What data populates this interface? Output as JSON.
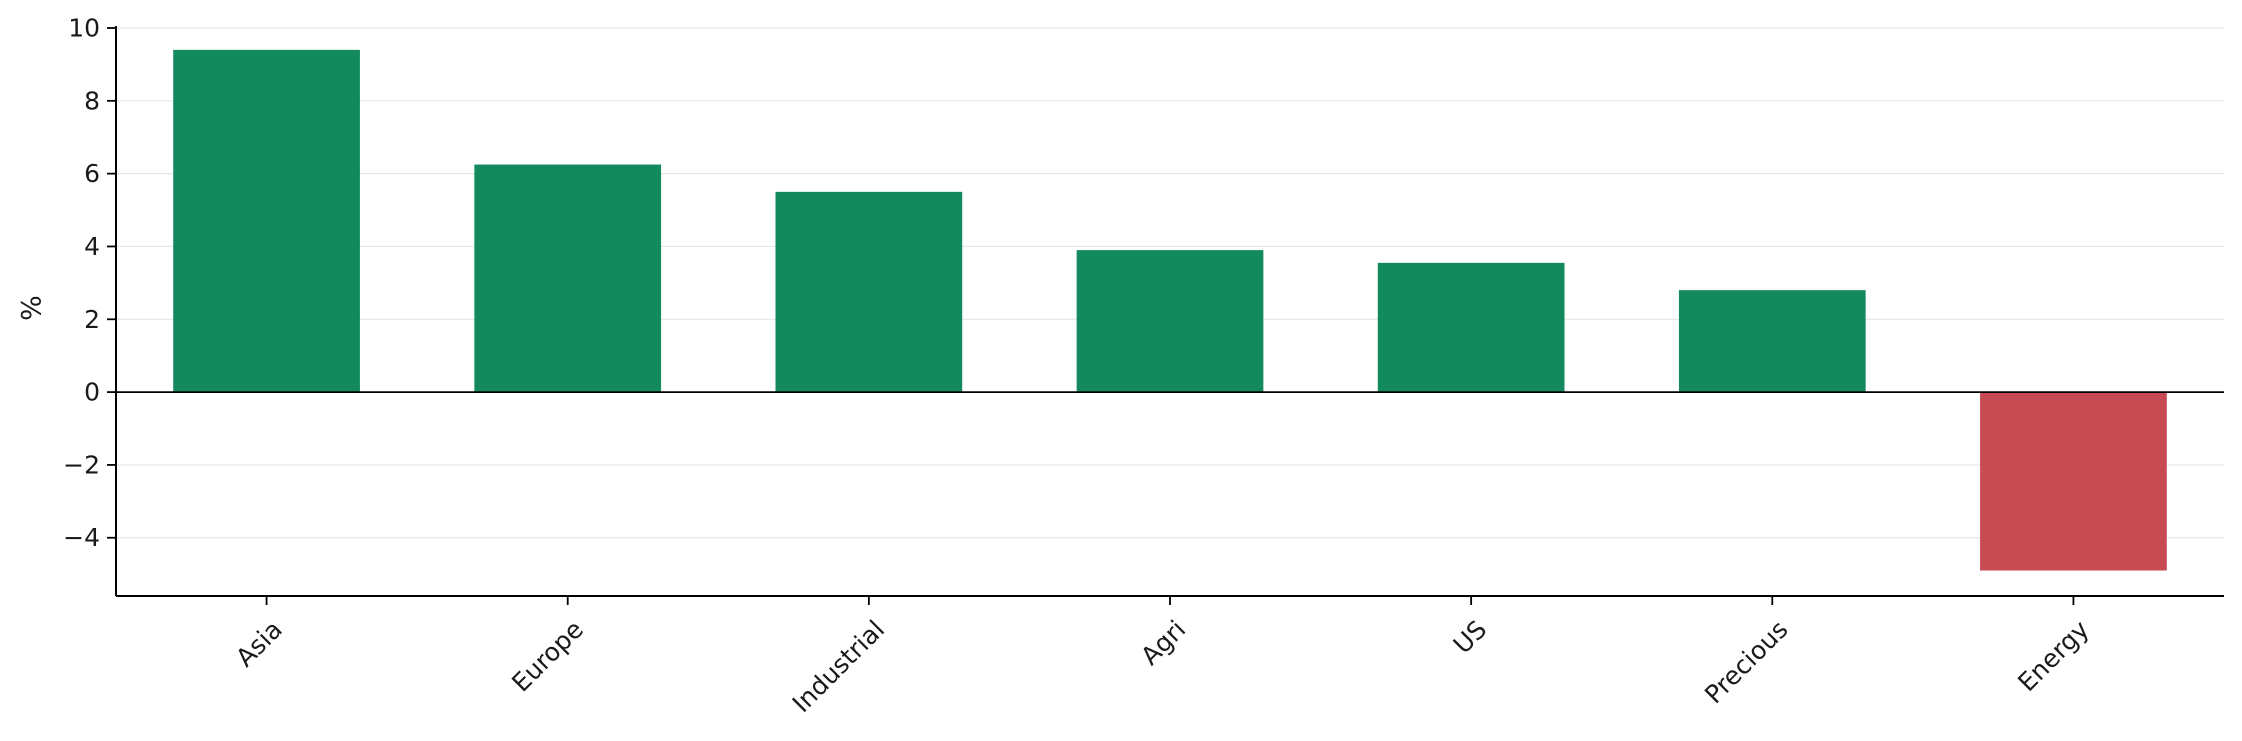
{
  "chart_data": {
    "type": "bar",
    "categories": [
      "Asia",
      "Europe",
      "Industrial",
      "Agri",
      "US",
      "Precious",
      "Energy"
    ],
    "values": [
      9.4,
      6.25,
      5.5,
      3.9,
      3.55,
      2.8,
      -4.9
    ],
    "title": "",
    "xlabel": "",
    "ylabel": "%",
    "ylim": [
      -5.6,
      10
    ],
    "yticks": [
      -4,
      -2,
      0,
      2,
      4,
      6,
      8,
      10
    ],
    "ytick_labels": [
      "−4",
      "−2",
      "0",
      "2",
      "4",
      "6",
      "8",
      "10"
    ],
    "grid": "horizontal",
    "colors": {
      "positive": "#138a5e",
      "negative": "#c84a53"
    }
  }
}
